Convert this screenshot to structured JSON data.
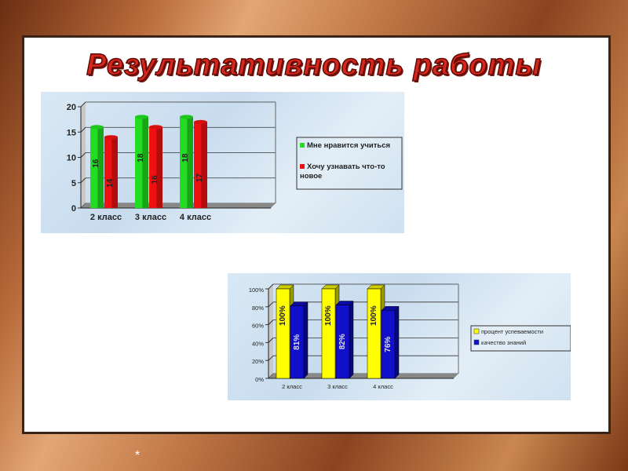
{
  "title": "Результативность работы",
  "footer_mark": "*",
  "chart_data": [
    {
      "type": "bar",
      "categories": [
        "2 класс",
        "3 класс",
        "4 класс"
      ],
      "series": [
        {
          "name": "Мне нравится учиться",
          "values": [
            16,
            18,
            18
          ],
          "color": "#22dd22",
          "labels": [
            "16",
            "18",
            "18"
          ]
        },
        {
          "name": "Хочу узнавать что-то новое",
          "values": [
            14,
            16,
            17
          ],
          "color": "#ee1111",
          "labels": [
            "14",
            "16",
            "17"
          ]
        }
      ],
      "yticks": [
        "0",
        "5",
        "10",
        "15",
        "20"
      ],
      "ylim": [
        0,
        20
      ],
      "grid": true,
      "legend": "right"
    },
    {
      "type": "bar",
      "categories": [
        "2 класс",
        "3 класс",
        "4 класс"
      ],
      "series": [
        {
          "name": "процент успеваемости",
          "values": [
            100,
            100,
            100
          ],
          "color": "#ffff00",
          "labels": [
            "100%",
            "100%",
            "100%"
          ]
        },
        {
          "name": "качество знаний",
          "values": [
            81,
            82,
            76
          ],
          "color": "#1010cc",
          "labels": [
            "81%",
            "82%",
            "76%"
          ]
        }
      ],
      "yticks": [
        "0%",
        "20%",
        "40%",
        "60%",
        "80%",
        "100%"
      ],
      "ylim": [
        0,
        100
      ],
      "grid": true,
      "legend": "right"
    }
  ]
}
